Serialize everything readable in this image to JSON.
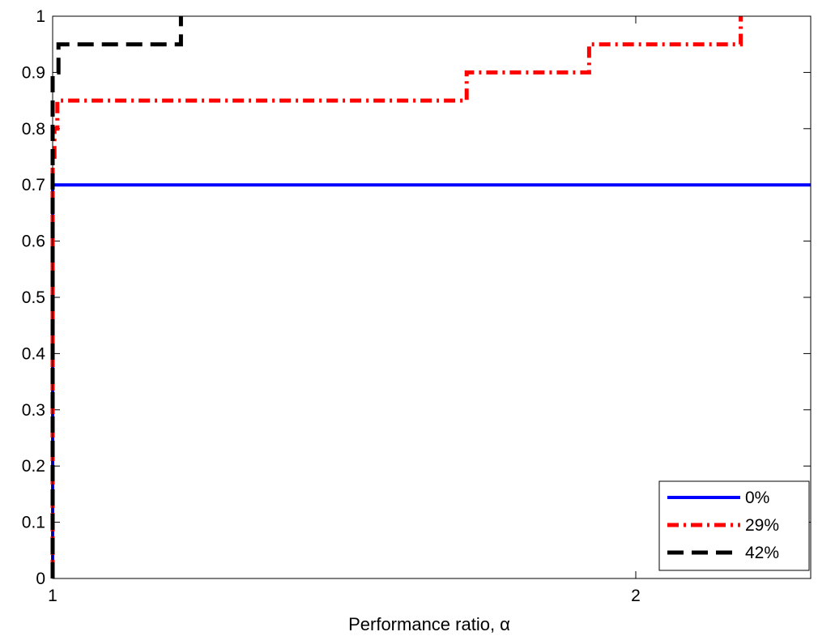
{
  "chart_data": {
    "type": "line",
    "title": "",
    "xlabel": "Performance ratio, α",
    "ylabel": "",
    "xlim": [
      1,
      2.3
    ],
    "ylim": [
      0,
      1
    ],
    "x_ticks": [
      1,
      2
    ],
    "y_ticks": [
      0,
      0.1,
      0.2,
      0.3,
      0.4,
      0.5,
      0.6,
      0.7,
      0.8,
      0.9,
      1
    ],
    "grid": false,
    "legend_position": "bottom-right",
    "series": [
      {
        "name": "0%",
        "color": "#0000ff",
        "style": "solid",
        "points": [
          [
            1.0,
            0.0
          ],
          [
            1.0,
            0.7
          ],
          [
            2.3,
            0.7
          ]
        ]
      },
      {
        "name": "29%",
        "color": "#ff0000",
        "style": "dash-dot",
        "points": [
          [
            1.0,
            0.0
          ],
          [
            1.0,
            0.75
          ],
          [
            1.003,
            0.75
          ],
          [
            1.003,
            0.8
          ],
          [
            1.008,
            0.8
          ],
          [
            1.008,
            0.85
          ],
          [
            1.71,
            0.85
          ],
          [
            1.71,
            0.9
          ],
          [
            1.92,
            0.9
          ],
          [
            1.92,
            0.95
          ],
          [
            2.18,
            0.95
          ],
          [
            2.18,
            1.0
          ]
        ]
      },
      {
        "name": "42%",
        "color": "#000000",
        "style": "dashed",
        "points": [
          [
            1.0,
            0.0
          ],
          [
            1.0,
            0.9
          ],
          [
            1.01,
            0.9
          ],
          [
            1.01,
            0.95
          ],
          [
            1.22,
            0.95
          ],
          [
            1.22,
            1.0
          ]
        ]
      }
    ]
  }
}
